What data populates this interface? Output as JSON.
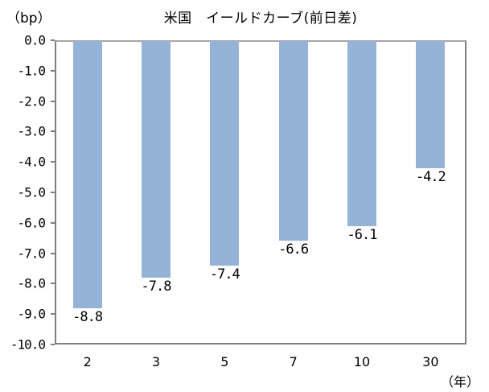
{
  "chart_data": {
    "type": "bar",
    "title": "米国　イールドカーブ(前日差)",
    "ylabel": "（bp）",
    "xlabel": "（年）",
    "categories": [
      "2",
      "3",
      "5",
      "7",
      "10",
      "30"
    ],
    "values": [
      -8.8,
      -7.8,
      -7.4,
      -6.6,
      -6.1,
      -4.2
    ],
    "value_labels": [
      "-8.8",
      "-7.8",
      "-7.4",
      "-6.6",
      "-6.1",
      "-4.2"
    ],
    "ylim": [
      -10.0,
      0.0
    ],
    "yticks": [
      "0.0",
      "-1.0",
      "-2.0",
      "-3.0",
      "-4.0",
      "-5.0",
      "-6.0",
      "-7.0",
      "-8.0",
      "-9.0",
      "-10.0"
    ],
    "grid": false,
    "legend": null,
    "bar_color": "#95B3D7"
  }
}
